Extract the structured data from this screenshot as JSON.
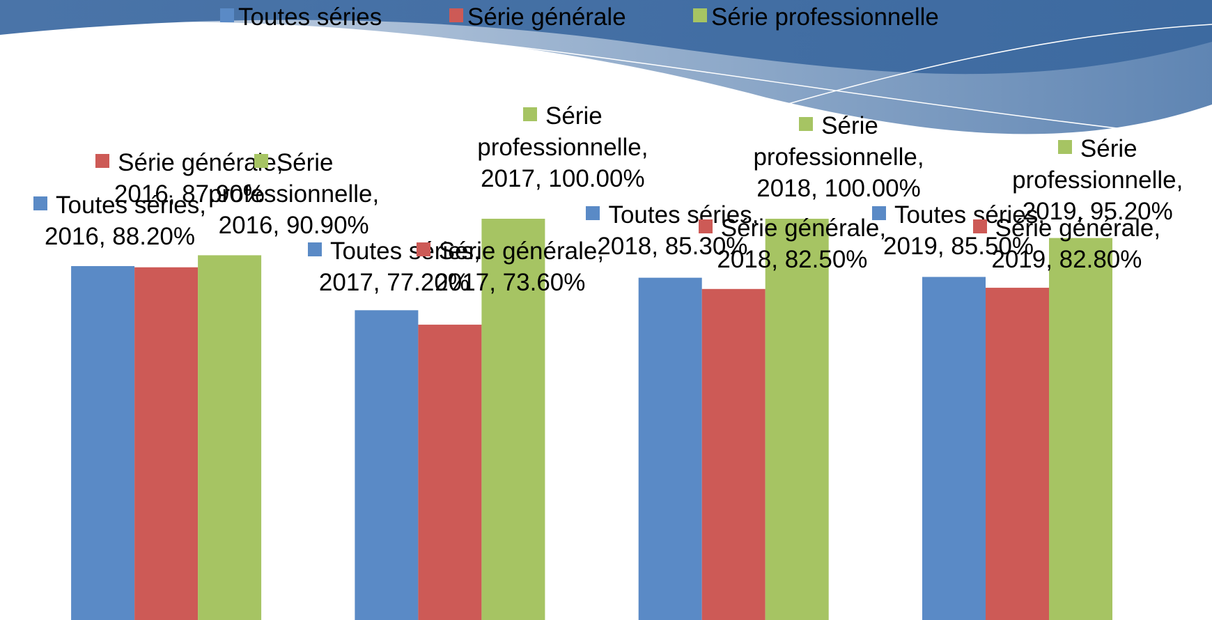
{
  "chart_data": {
    "type": "bar",
    "categories": [
      "2016",
      "2017",
      "2018",
      "2019"
    ],
    "series": [
      {
        "name": "Toutes séries",
        "color": "#5a8ac6",
        "values": [
          88.2,
          77.2,
          85.3,
          85.5
        ],
        "value_labels": [
          "Toutes séries, 2016, 88.20%",
          "Toutes séries, 2017, 77.20%",
          "Toutes séries, 2018, 85.30%",
          "Toutes séries, 2019, 85.50%"
        ]
      },
      {
        "name": "Série générale",
        "color": "#cd5a56",
        "values": [
          87.9,
          73.6,
          82.5,
          82.8
        ],
        "value_labels": [
          "Série générale, 2016, 87.90%",
          "Série générale, 2017, 73.60%",
          "Série générale, 2018, 82.50%",
          "Série générale, 2019, 82.80%"
        ]
      },
      {
        "name": "Série professionnelle",
        "color": "#a6c463",
        "values": [
          90.9,
          100,
          100,
          95.2
        ],
        "value_labels": [
          "Série professionnelle, 2016, 90.90%",
          "Série professionnelle, 2017, 100.00%",
          "Série professionnelle, 2018, 100.00%",
          "Série professionnelle, 2019, 95.20%"
        ]
      }
    ],
    "ylim": [
      0,
      100
    ],
    "legend": "top"
  }
}
